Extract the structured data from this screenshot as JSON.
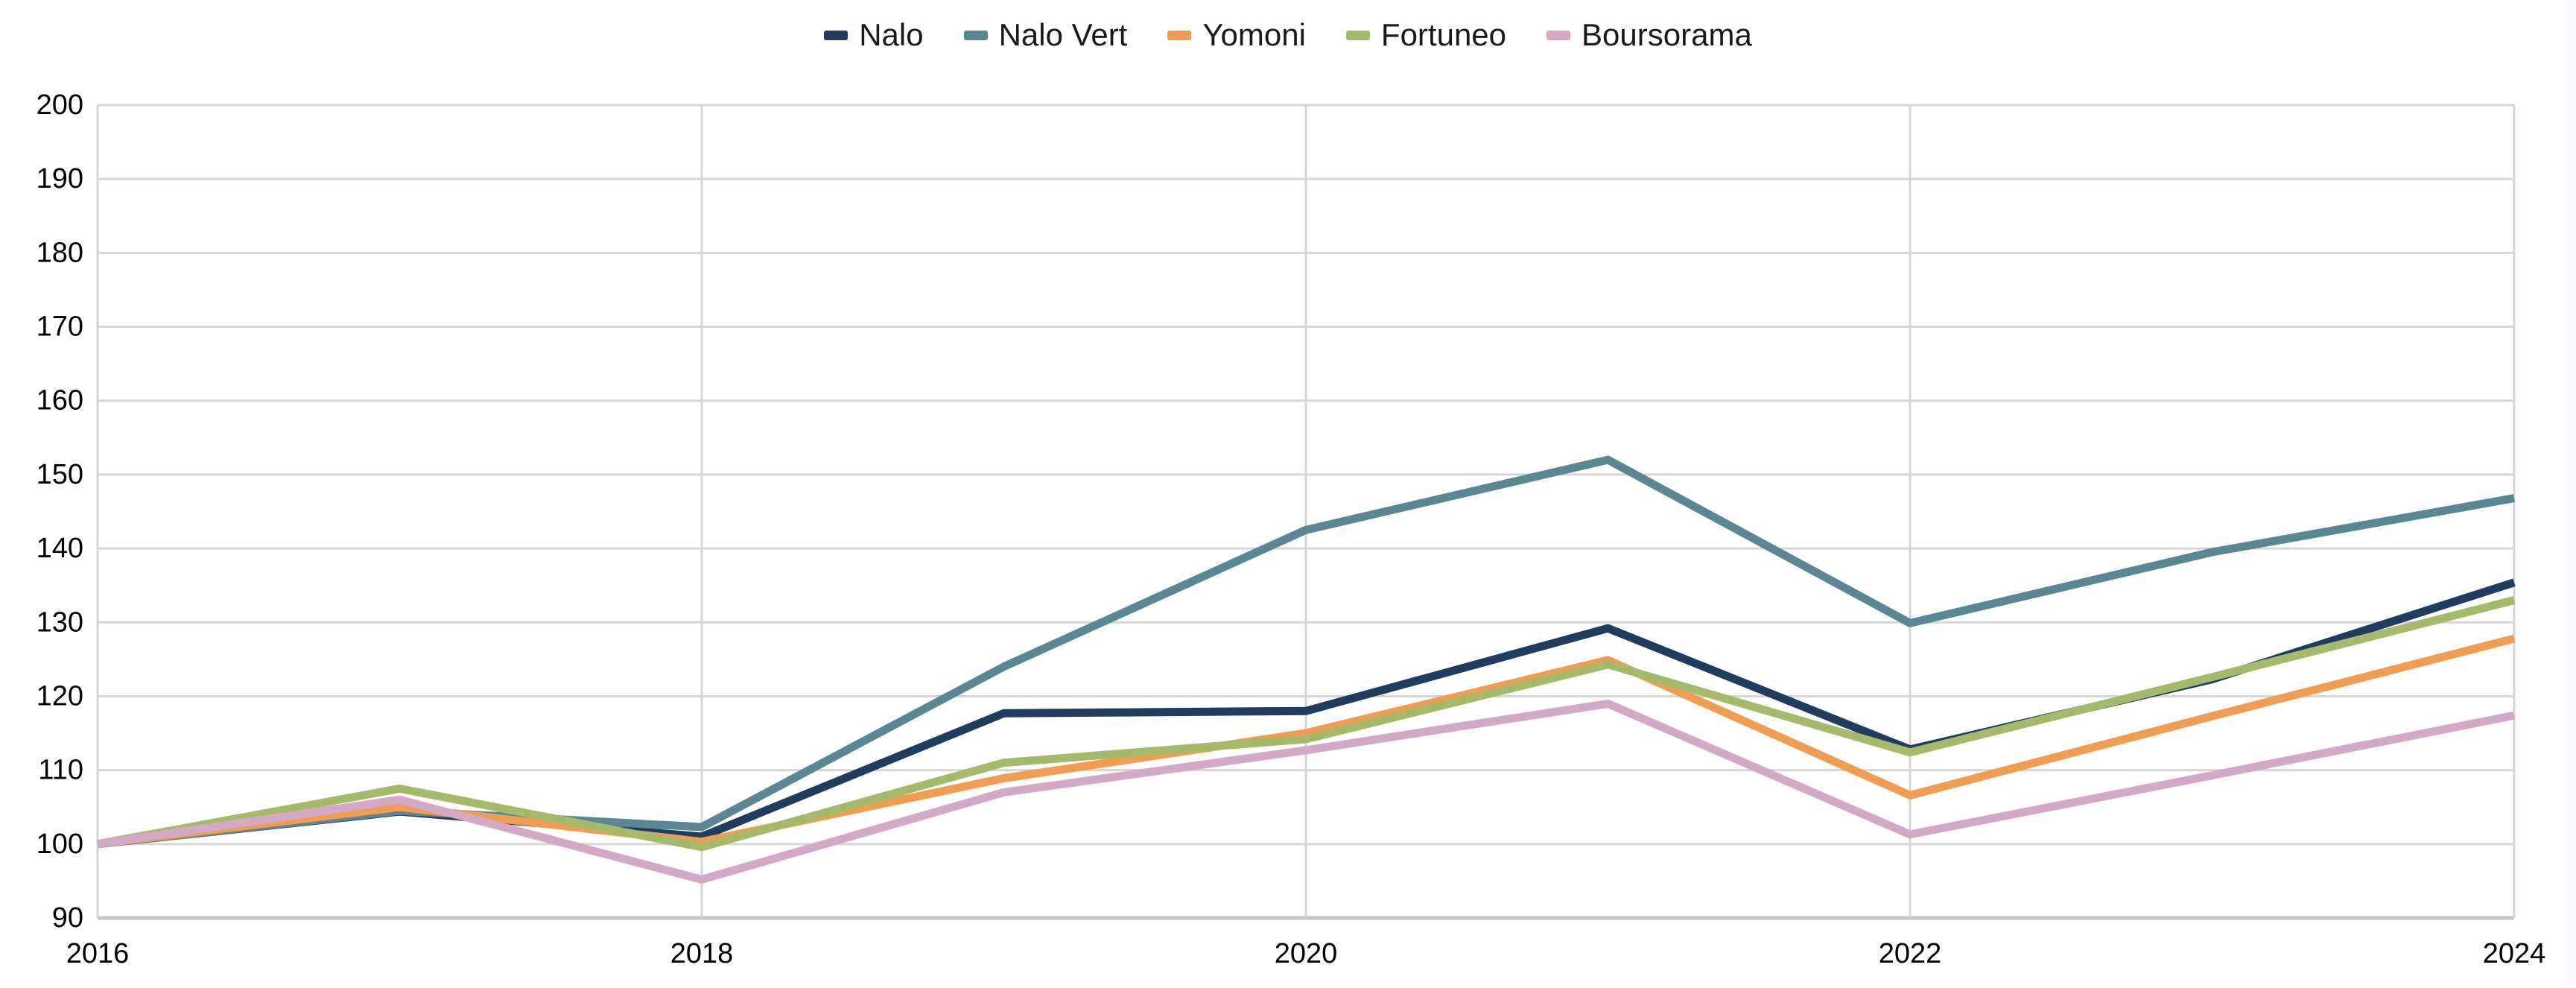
{
  "chart_data": {
    "type": "line",
    "title": "",
    "xlabel": "",
    "ylabel": "",
    "x": [
      2016,
      2017,
      2018,
      2019,
      2020,
      2021,
      2022,
      2023,
      2024
    ],
    "xlim": [
      2016,
      2024
    ],
    "xticks": [
      "2016",
      "2018",
      "2020",
      "2022",
      "2024"
    ],
    "ylim": [
      90,
      200
    ],
    "yticks": [
      "90",
      "100",
      "110",
      "120",
      "130",
      "140",
      "150",
      "160",
      "170",
      "180",
      "190",
      "200"
    ],
    "grid": {
      "horizontal": true,
      "vertical": true
    },
    "legend_position": "top-center",
    "series": [
      {
        "name": "Nalo",
        "color": "#203c5f",
        "values": [
          100,
          104.4,
          101.0,
          117.7,
          118.0,
          129.2,
          112.8,
          122.3,
          135.4
        ]
      },
      {
        "name": "Nalo Vert",
        "color": "#5b8795",
        "values": [
          100,
          104.5,
          102.3,
          124.0,
          142.5,
          152.0,
          129.9,
          139.5,
          146.8
        ]
      },
      {
        "name": "Yomoni",
        "color": "#ef9d52",
        "values": [
          100,
          105.0,
          100.3,
          108.9,
          115.0,
          124.9,
          106.6,
          117.3,
          127.8
        ]
      },
      {
        "name": "Fortuneo",
        "color": "#a5ba6b",
        "values": [
          100,
          107.5,
          99.6,
          111.0,
          114.2,
          124.3,
          112.4,
          122.6,
          133.0
        ]
      },
      {
        "name": "Boursorama",
        "color": "#d3a9c6",
        "values": [
          100,
          106.0,
          95.2,
          107.0,
          112.7,
          119.0,
          101.3,
          109.3,
          117.4
        ]
      }
    ]
  },
  "colors": {
    "grid": "#d6d6d6",
    "axis": "#c4c4c4",
    "tick_text": "#000000",
    "background": "#ffffff",
    "scrollbar_track": "#f8fafd"
  }
}
